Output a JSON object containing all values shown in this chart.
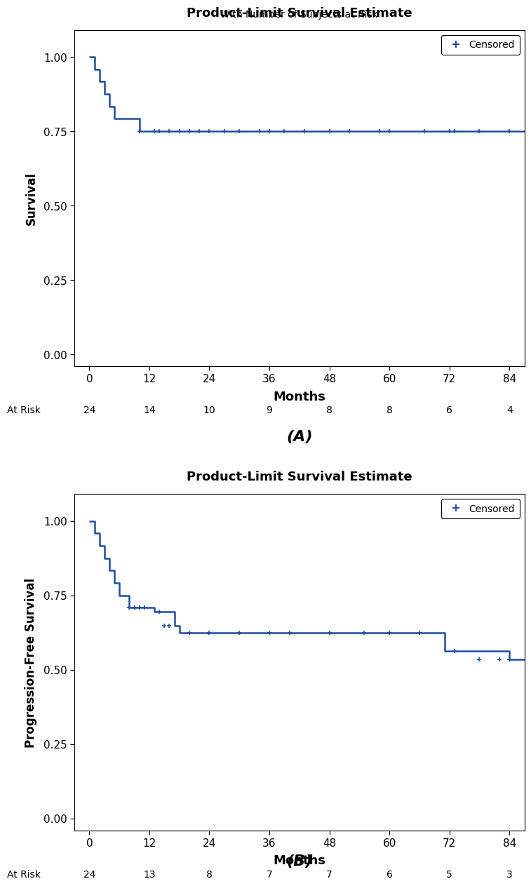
{
  "panel_a": {
    "title": "Product-Limit Survival Estimate",
    "subtitle": "With Number of Subjects at Risk",
    "ylabel": "Survival",
    "xlabel": "Months",
    "xlim": [
      -3,
      87
    ],
    "ylim": [
      -0.04,
      1.09
    ],
    "xticks": [
      0,
      12,
      24,
      36,
      48,
      60,
      72,
      84
    ],
    "yticks": [
      0.0,
      0.25,
      0.5,
      0.75,
      1.0
    ],
    "at_risk_times": [
      0,
      12,
      24,
      36,
      48,
      60,
      72,
      84
    ],
    "at_risk_counts": [
      "24",
      "14",
      "10",
      "9",
      "8",
      "8",
      "6",
      "4"
    ],
    "step_x": [
      0,
      1,
      2,
      3,
      4,
      5,
      6,
      7,
      8,
      9,
      10,
      84,
      87
    ],
    "step_y": [
      1.0,
      0.958,
      0.917,
      0.875,
      0.833,
      0.792,
      0.792,
      0.792,
      0.792,
      0.792,
      0.75,
      0.75,
      0.75
    ],
    "cens_t": [
      10,
      13,
      14,
      16,
      18,
      20,
      22,
      24,
      27,
      30,
      34,
      36,
      39,
      43,
      48,
      52,
      58,
      60,
      67,
      72,
      73,
      78,
      84
    ],
    "cens_s": [
      0.75,
      0.75,
      0.75,
      0.75,
      0.75,
      0.75,
      0.75,
      0.75,
      0.75,
      0.75,
      0.75,
      0.75,
      0.75,
      0.75,
      0.75,
      0.75,
      0.75,
      0.75,
      0.75,
      0.75,
      0.75,
      0.75,
      0.75
    ]
  },
  "panel_b": {
    "title": "Product-Limit Survival Estimate",
    "subtitle": "",
    "ylabel": "Progression-Free Survival",
    "xlabel": "Months",
    "xlim": [
      -3,
      87
    ],
    "ylim": [
      -0.04,
      1.09
    ],
    "xticks": [
      0,
      12,
      24,
      36,
      48,
      60,
      72,
      84
    ],
    "yticks": [
      0.0,
      0.25,
      0.5,
      0.75,
      1.0
    ],
    "at_risk_times": [
      0,
      12,
      24,
      36,
      48,
      60,
      72,
      84
    ],
    "at_risk_counts": [
      "24",
      "13",
      "8",
      "7",
      "7",
      "6",
      "5",
      "3"
    ],
    "step_x": [
      0,
      1,
      2,
      3,
      4,
      5,
      6,
      8,
      13,
      17,
      18,
      68,
      71,
      84,
      87
    ],
    "step_y": [
      1.0,
      0.958,
      0.917,
      0.875,
      0.833,
      0.792,
      0.75,
      0.708,
      0.694,
      0.648,
      0.625,
      0.625,
      0.562,
      0.534,
      0.534
    ],
    "cens_t": [
      8,
      9,
      10,
      11,
      14,
      15,
      16,
      20,
      24,
      30,
      36,
      40,
      48,
      55,
      60,
      66,
      73,
      78,
      82,
      84
    ],
    "cens_s": [
      0.708,
      0.708,
      0.708,
      0.708,
      0.694,
      0.648,
      0.648,
      0.625,
      0.625,
      0.625,
      0.625,
      0.625,
      0.625,
      0.625,
      0.625,
      0.625,
      0.562,
      0.534,
      0.534,
      0.534
    ]
  },
  "label_a": "(A)",
  "label_b": "(B)",
  "line_color": "#1f4e9e",
  "line_width": 1.8,
  "bg_color": "#ffffff"
}
